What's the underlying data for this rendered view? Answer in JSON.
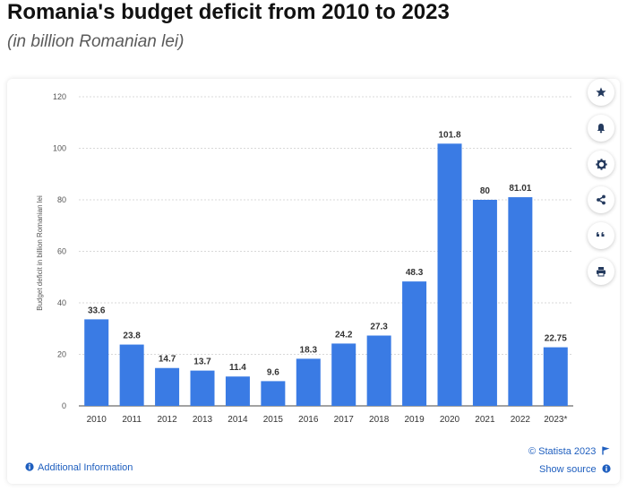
{
  "header": {
    "title": "Romania's budget deficit from 2010 to 2023",
    "subtitle": "(in billion Romanian lei)"
  },
  "colors": {
    "bar": "#3a7be4",
    "grid": "#d9d9d9",
    "axis_text": "#444444",
    "link": "#1f5fbf"
  },
  "sidebar": {
    "buttons": [
      {
        "icon": "star-icon"
      },
      {
        "icon": "bell-icon"
      },
      {
        "icon": "gear-icon"
      },
      {
        "icon": "share-icon"
      },
      {
        "icon": "quote-icon"
      },
      {
        "icon": "print-icon"
      }
    ]
  },
  "footer": {
    "copyright": "© Statista 2023",
    "show_source": "Show source",
    "additional_info": "Additional Information"
  },
  "chart_data": {
    "type": "bar",
    "categories": [
      "2010",
      "2011",
      "2012",
      "2013",
      "2014",
      "2015",
      "2016",
      "2017",
      "2018",
      "2019",
      "2020",
      "2021",
      "2022",
      "2023*"
    ],
    "values": [
      33.6,
      23.8,
      14.7,
      13.7,
      11.4,
      9.6,
      18.3,
      24.2,
      27.3,
      48.3,
      101.8,
      80,
      81.01,
      22.75
    ],
    "value_labels": [
      "33.6",
      "23.8",
      "14.7",
      "13.7",
      "11.4",
      "9.6",
      "18.3",
      "24.2",
      "27.3",
      "48.3",
      "101.8",
      "80",
      "81.01",
      "22.75"
    ],
    "title": "Romania's budget deficit from 2010 to 2023",
    "subtitle": "(in billion Romanian lei)",
    "xlabel": "",
    "ylabel": "Budget deficit in billion Romanian lei",
    "ylim": [
      0,
      120
    ],
    "yticks": [
      0,
      20,
      40,
      60,
      80,
      100,
      120
    ],
    "grid": true,
    "legend": "none"
  }
}
